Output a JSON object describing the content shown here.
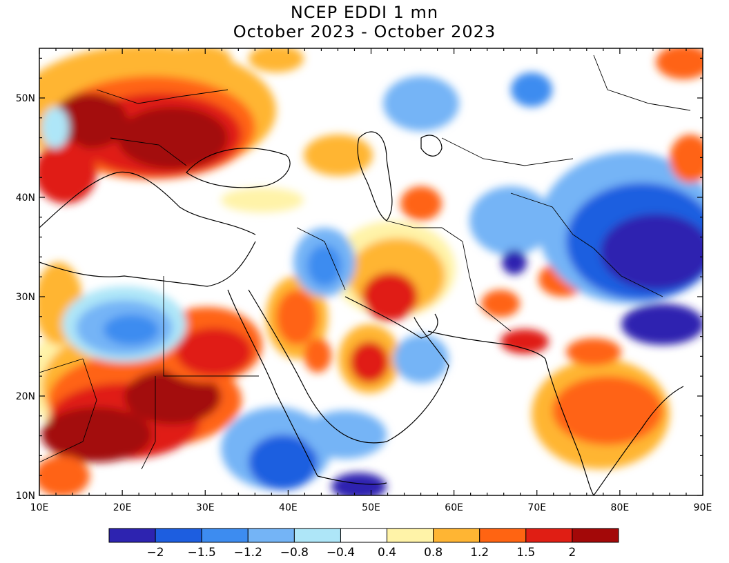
{
  "title": "NCEP EDDI 1 mn",
  "subtitle": "October 2023 - October 2023",
  "map": {
    "lon_range": [
      10,
      90
    ],
    "lat_range": [
      10,
      55
    ],
    "lon_ticks": [
      "10E",
      "20E",
      "30E",
      "40E",
      "50E",
      "60E",
      "70E",
      "80E",
      "90E"
    ],
    "lat_ticks": [
      "10N",
      "20N",
      "30N",
      "40N",
      "50N"
    ]
  },
  "legend": {
    "labels": [
      "-2",
      "-1.5",
      "-1.2",
      "-0.8",
      "-0.4",
      "0.4",
      "0.8",
      "1.2",
      "1.5",
      "2"
    ],
    "colors": [
      "#2d23b0",
      "#1d5ee0",
      "#3d8cf0",
      "#74b4f6",
      "#aee6f8",
      "#ffffff",
      "#fff3a8",
      "#ffb533",
      "#ff6412",
      "#e01e14",
      "#a30808"
    ]
  }
}
